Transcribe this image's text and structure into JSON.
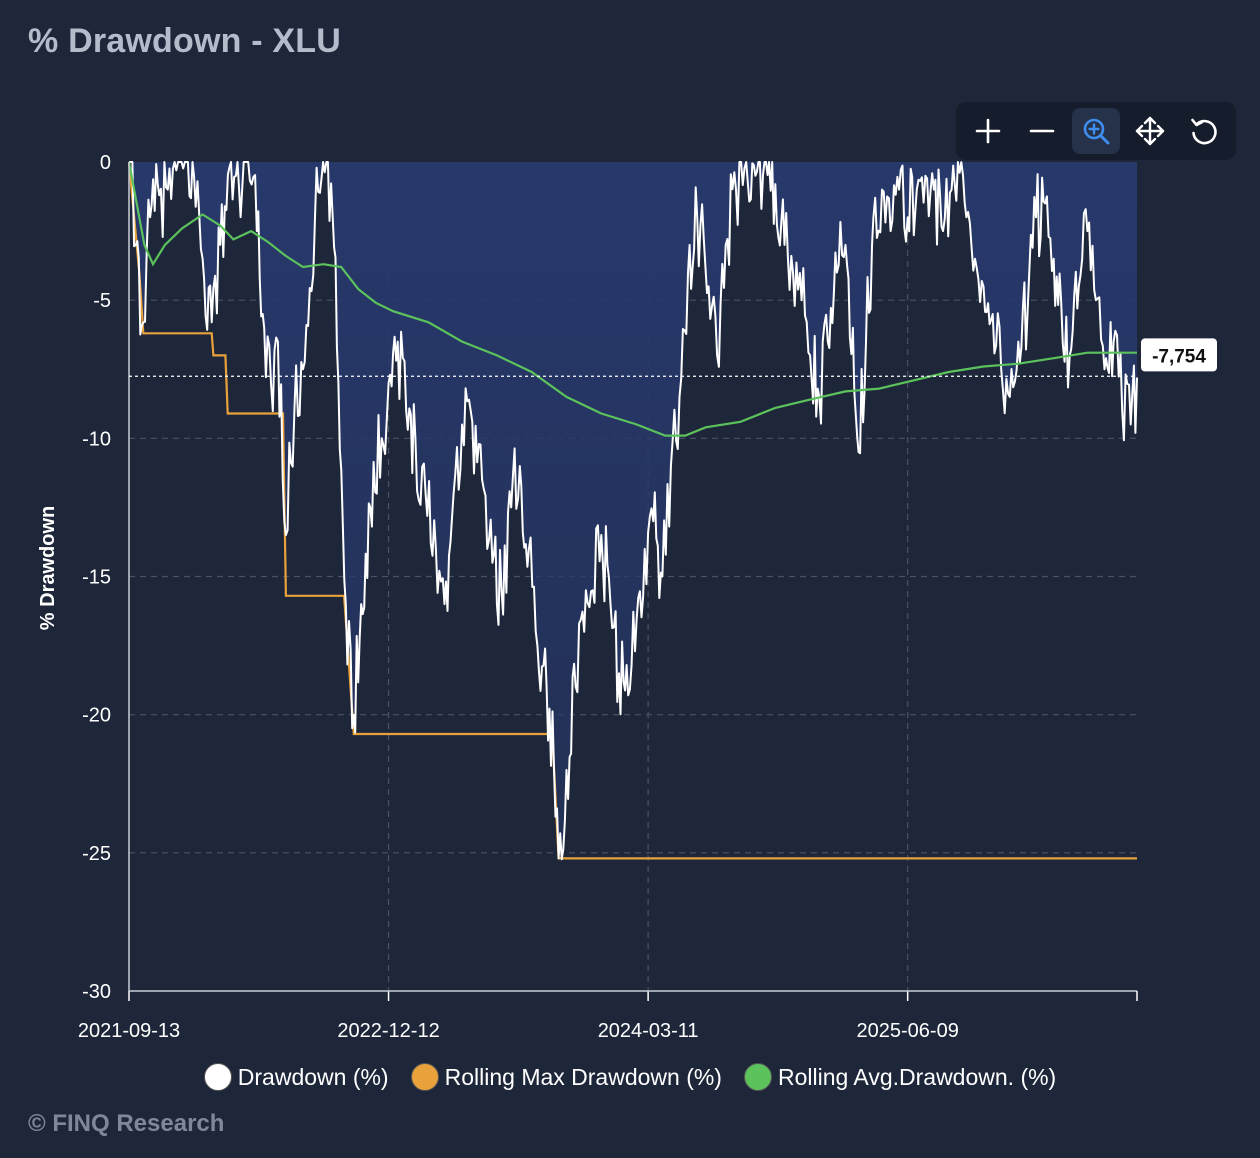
{
  "title": "% Drawdown - XLU",
  "footer": "© FINQ Research",
  "toolbar": {
    "tools": [
      {
        "name": "zoom-in",
        "icon": "plus-icon"
      },
      {
        "name": "zoom-out",
        "icon": "minus-icon"
      },
      {
        "name": "zoom-select",
        "icon": "magnifier-plus-icon",
        "active": true
      },
      {
        "name": "pan",
        "icon": "move-arrows-icon"
      },
      {
        "name": "reset",
        "icon": "reset-icon"
      }
    ]
  },
  "legend": [
    {
      "label": "Drawdown (%)",
      "color": "#ffffff"
    },
    {
      "label": "Rolling Max Drawdown (%)",
      "color": "#e9a23b"
    },
    {
      "label": "Rolling Avg.Drawdown. (%)",
      "color": "#5cc25c"
    }
  ],
  "chart_data": {
    "type": "line",
    "ylabel": "% Drawdown",
    "ylim": [
      -30,
      0
    ],
    "yticks": [
      0,
      -5,
      -10,
      -15,
      -20,
      -25,
      -30
    ],
    "xticks": [
      "2021-09-13",
      "2022-12-12",
      "2024-03-11",
      "2025-06-09"
    ],
    "xlim": [
      "2021-09-13",
      "2026-07-16"
    ],
    "grid": true,
    "legend_position": "bottom",
    "area_fill_color": "#27386b",
    "reference_line": {
      "value": -7.754,
      "label": "-7,754",
      "style": "dotted"
    },
    "series": [
      {
        "name": "Drawdown (%)",
        "color": "#ffffff",
        "points": [
          [
            "2021-09-13",
            0
          ],
          [
            "2021-09-25",
            -3.0
          ],
          [
            "2021-10-08",
            -5.8
          ],
          [
            "2021-10-20",
            -2.0
          ],
          [
            "2021-11-05",
            -1.2
          ],
          [
            "2021-11-20",
            -1.0
          ],
          [
            "2021-12-05",
            -0.3
          ],
          [
            "2021-12-20",
            0
          ],
          [
            "2022-01-05",
            -0.5
          ],
          [
            "2022-01-20",
            -3.5
          ],
          [
            "2022-02-05",
            -5.8
          ],
          [
            "2022-02-20",
            -3.0
          ],
          [
            "2022-03-08",
            -0.2
          ],
          [
            "2022-03-25",
            -1.0
          ],
          [
            "2022-04-10",
            0
          ],
          [
            "2022-04-25",
            -2.5
          ],
          [
            "2022-05-08",
            -6.0
          ],
          [
            "2022-05-20",
            -8.0
          ],
          [
            "2022-06-01",
            -6.5
          ],
          [
            "2022-06-15",
            -13.5
          ],
          [
            "2022-06-30",
            -9.0
          ],
          [
            "2022-07-15",
            -7.5
          ],
          [
            "2022-08-05",
            -2.0
          ],
          [
            "2022-08-25",
            0
          ],
          [
            "2022-09-05",
            -2.0
          ],
          [
            "2022-09-15",
            -8.0
          ],
          [
            "2022-09-28",
            -16.0
          ],
          [
            "2022-10-12",
            -20.0
          ],
          [
            "2022-10-25",
            -16.0
          ],
          [
            "2022-11-10",
            -12.5
          ],
          [
            "2022-11-30",
            -10.0
          ],
          [
            "2022-12-12",
            -8.0
          ],
          [
            "2022-12-28",
            -6.5
          ],
          [
            "2023-01-12",
            -9.0
          ],
          [
            "2023-01-28",
            -10.0
          ],
          [
            "2023-02-15",
            -12.0
          ],
          [
            "2023-03-05",
            -14.0
          ],
          [
            "2023-03-20",
            -16.0
          ],
          [
            "2023-04-05",
            -12.0
          ],
          [
            "2023-04-20",
            -9.5
          ],
          [
            "2023-05-05",
            -9.0
          ],
          [
            "2023-05-25",
            -11.5
          ],
          [
            "2023-06-12",
            -14.5
          ],
          [
            "2023-06-28",
            -15.5
          ],
          [
            "2023-07-15",
            -12.5
          ],
          [
            "2023-07-30",
            -11.0
          ],
          [
            "2023-08-15",
            -14.0
          ],
          [
            "2023-08-30",
            -17.5
          ],
          [
            "2023-09-15",
            -19.0
          ],
          [
            "2023-09-28",
            -22.0
          ],
          [
            "2023-10-06",
            -25.2
          ],
          [
            "2023-10-20",
            -22.0
          ],
          [
            "2023-11-05",
            -19.0
          ],
          [
            "2023-11-20",
            -17.0
          ],
          [
            "2023-12-05",
            -15.5
          ],
          [
            "2023-12-20",
            -13.5
          ],
          [
            "2024-01-05",
            -16.0
          ],
          [
            "2024-01-20",
            -18.5
          ],
          [
            "2024-02-05",
            -19.3
          ],
          [
            "2024-02-20",
            -16.5
          ],
          [
            "2024-03-05",
            -14.0
          ],
          [
            "2024-03-20",
            -13.0
          ],
          [
            "2024-04-05",
            -15.0
          ],
          [
            "2024-04-20",
            -11.0
          ],
          [
            "2024-05-05",
            -8.5
          ],
          [
            "2024-05-20",
            -4.0
          ],
          [
            "2024-06-05",
            -2.0
          ],
          [
            "2024-06-25",
            -4.5
          ],
          [
            "2024-07-10",
            -7.0
          ],
          [
            "2024-07-25",
            -3.0
          ],
          [
            "2024-08-12",
            -1.0
          ],
          [
            "2024-08-30",
            0
          ],
          [
            "2024-09-15",
            -0.5
          ],
          [
            "2024-10-01",
            0
          ],
          [
            "2024-10-20",
            -0.8
          ],
          [
            "2024-11-05",
            -3.0
          ],
          [
            "2024-11-20",
            -4.0
          ],
          [
            "2024-12-05",
            -5.0
          ],
          [
            "2024-12-20",
            -7.0
          ],
          [
            "2025-01-05",
            -8.5
          ],
          [
            "2025-01-20",
            -6.5
          ],
          [
            "2025-02-05",
            -4.0
          ],
          [
            "2025-02-20",
            -3.0
          ],
          [
            "2025-03-05",
            -6.0
          ],
          [
            "2025-03-15",
            -10.5
          ],
          [
            "2025-03-28",
            -6.5
          ],
          [
            "2025-04-10",
            -2.0
          ],
          [
            "2025-04-25",
            -1.0
          ],
          [
            "2025-05-10",
            -2.5
          ],
          [
            "2025-05-25",
            -1.0
          ],
          [
            "2025-06-09",
            -2.0
          ],
          [
            "2025-06-25",
            -1.0
          ],
          [
            "2025-07-10",
            -0.5
          ],
          [
            "2025-07-25",
            -1.0
          ],
          [
            "2025-08-10",
            -2.5
          ],
          [
            "2025-08-25",
            -1.0
          ],
          [
            "2025-09-05",
            0
          ],
          [
            "2025-09-20",
            -2.0
          ],
          [
            "2025-10-05",
            -3.5
          ],
          [
            "2025-10-20",
            -4.5
          ],
          [
            "2025-11-05",
            -5.5
          ],
          [
            "2025-11-20",
            -7.5
          ],
          [
            "2025-12-05",
            -8.5
          ],
          [
            "2025-12-20",
            -6.5
          ],
          [
            "2026-01-05",
            -5.5
          ],
          [
            "2026-01-20",
            -2.0
          ],
          [
            "2026-02-05",
            -1.5
          ],
          [
            "2026-02-20",
            -3.5
          ],
          [
            "2026-03-05",
            -5.0
          ],
          [
            "2026-03-20",
            -7.0
          ],
          [
            "2026-04-05",
            -4.5
          ],
          [
            "2026-04-20",
            -2.5
          ],
          [
            "2026-05-05",
            -5.0
          ],
          [
            "2026-05-20",
            -7.5
          ],
          [
            "2026-06-05",
            -6.5
          ],
          [
            "2026-06-20",
            -9.0
          ],
          [
            "2026-07-05",
            -9.5
          ],
          [
            "2026-07-16",
            -7.8
          ]
        ]
      },
      {
        "name": "Rolling Max Drawdown (%)",
        "color": "#e9a23b",
        "points": [
          [
            "2021-09-13",
            0
          ],
          [
            "2021-10-01",
            -4.0
          ],
          [
            "2021-10-08",
            -6.2
          ],
          [
            "2022-02-05",
            -6.2
          ],
          [
            "2022-02-08",
            -7.0
          ],
          [
            "2022-03-01",
            -7.0
          ],
          [
            "2022-03-05",
            -9.1
          ],
          [
            "2022-06-10",
            -9.1
          ],
          [
            "2022-06-15",
            -15.7
          ],
          [
            "2022-09-25",
            -15.7
          ],
          [
            "2022-10-12",
            -20.7
          ],
          [
            "2023-09-25",
            -20.7
          ],
          [
            "2023-10-06",
            -25.2
          ],
          [
            "2026-07-16",
            -25.2
          ]
        ]
      },
      {
        "name": "Rolling Avg.Drawdown. (%)",
        "color": "#5cc25c",
        "points": [
          [
            "2021-09-13",
            0
          ],
          [
            "2021-10-10",
            -3.0
          ],
          [
            "2021-10-25",
            -3.7
          ],
          [
            "2021-11-15",
            -3.0
          ],
          [
            "2021-12-15",
            -2.4
          ],
          [
            "2022-01-20",
            -1.9
          ],
          [
            "2022-02-20",
            -2.3
          ],
          [
            "2022-03-15",
            -2.8
          ],
          [
            "2022-04-15",
            -2.5
          ],
          [
            "2022-05-15",
            -2.9
          ],
          [
            "2022-06-15",
            -3.4
          ],
          [
            "2022-07-15",
            -3.8
          ],
          [
            "2022-08-20",
            -3.7
          ],
          [
            "2022-09-20",
            -3.8
          ],
          [
            "2022-10-20",
            -4.6
          ],
          [
            "2022-11-20",
            -5.1
          ],
          [
            "2022-12-20",
            -5.4
          ],
          [
            "2023-02-20",
            -5.8
          ],
          [
            "2023-04-20",
            -6.5
          ],
          [
            "2023-06-20",
            -7.0
          ],
          [
            "2023-08-20",
            -7.6
          ],
          [
            "2023-10-20",
            -8.5
          ],
          [
            "2023-12-20",
            -9.1
          ],
          [
            "2024-02-20",
            -9.5
          ],
          [
            "2024-04-10",
            -9.9
          ],
          [
            "2024-05-15",
            -9.9
          ],
          [
            "2024-06-20",
            -9.6
          ],
          [
            "2024-08-20",
            -9.4
          ],
          [
            "2024-10-20",
            -8.9
          ],
          [
            "2024-12-20",
            -8.6
          ],
          [
            "2025-02-20",
            -8.3
          ],
          [
            "2025-04-20",
            -8.2
          ],
          [
            "2025-06-20",
            -7.9
          ],
          [
            "2025-08-20",
            -7.6
          ],
          [
            "2025-10-20",
            -7.4
          ],
          [
            "2025-12-20",
            -7.3
          ],
          [
            "2026-02-20",
            -7.1
          ],
          [
            "2026-04-20",
            -6.9
          ],
          [
            "2026-07-16",
            -6.9
          ]
        ]
      }
    ]
  }
}
